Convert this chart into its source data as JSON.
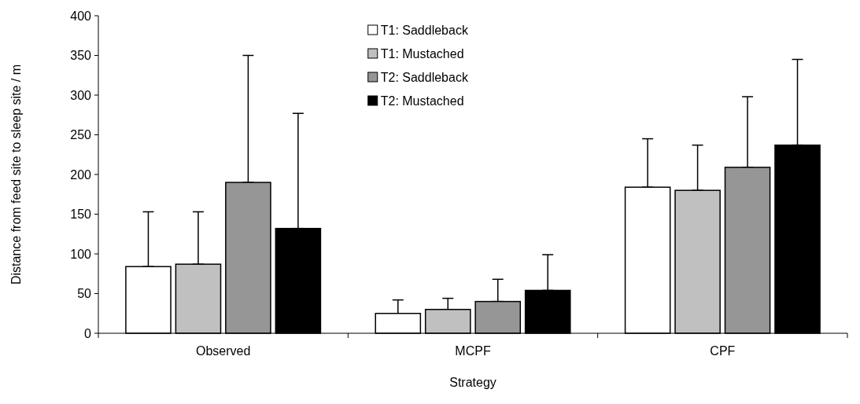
{
  "chart_data": {
    "type": "bar",
    "xlabel": "Strategy",
    "ylabel": "Distance from feed site to sleep site / m",
    "categories": [
      "Observed",
      "MCPF",
      "CPF"
    ],
    "series": [
      {
        "name": "T1: Saddleback",
        "color": "#ffffff",
        "values": [
          84,
          25,
          184
        ],
        "errors": [
          [
            84,
            153
          ],
          [
            25,
            42
          ],
          [
            184,
            245
          ]
        ]
      },
      {
        "name": "T1: Mustached",
        "color": "#c0c0c0",
        "values": [
          87,
          30,
          180
        ],
        "errors": [
          [
            87,
            153
          ],
          [
            30,
            44
          ],
          [
            180,
            237
          ]
        ]
      },
      {
        "name": "T2: Saddleback",
        "color": "#969696",
        "values": [
          190,
          40,
          209
        ],
        "errors": [
          [
            190,
            350
          ],
          [
            40,
            68
          ],
          [
            209,
            298
          ]
        ]
      },
      {
        "name": "T2: Mustached",
        "color": "#000000",
        "values": [
          132,
          54,
          237
        ],
        "errors": [
          [
            132,
            277
          ],
          [
            54,
            99
          ],
          [
            237,
            345
          ]
        ]
      }
    ],
    "ylim": [
      0,
      400
    ],
    "yticks": [
      0,
      50,
      100,
      150,
      200,
      250,
      300,
      350,
      400
    ],
    "grid": false,
    "legend": "top"
  }
}
